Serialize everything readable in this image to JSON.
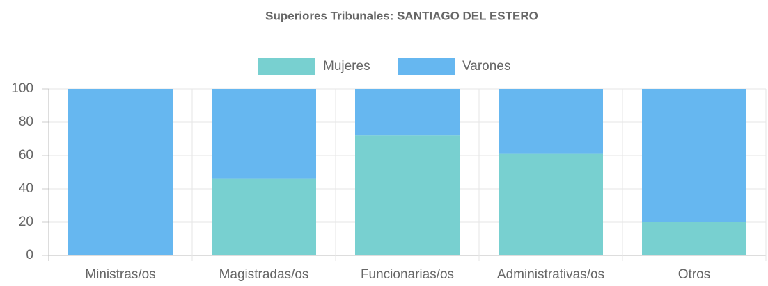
{
  "chart_data": {
    "type": "stacked_bar",
    "title": "Superiores Tribunales: SANTIAGO DEL ESTERO",
    "categories": [
      "Ministras/os",
      "Magistradas/os",
      "Funcionarias/os",
      "Administrativas/os",
      "Otros"
    ],
    "series": [
      {
        "name": "Mujeres",
        "color": "#78d0d0",
        "values": [
          0,
          46,
          72,
          61,
          20
        ]
      },
      {
        "name": "Varones",
        "color": "#66b7f0",
        "values": [
          100,
          54,
          28,
          39,
          80
        ]
      }
    ],
    "ylim": [
      0,
      100
    ],
    "yticks": [
      0,
      20,
      40,
      60,
      80,
      100
    ],
    "grid": true,
    "legend": "top"
  }
}
